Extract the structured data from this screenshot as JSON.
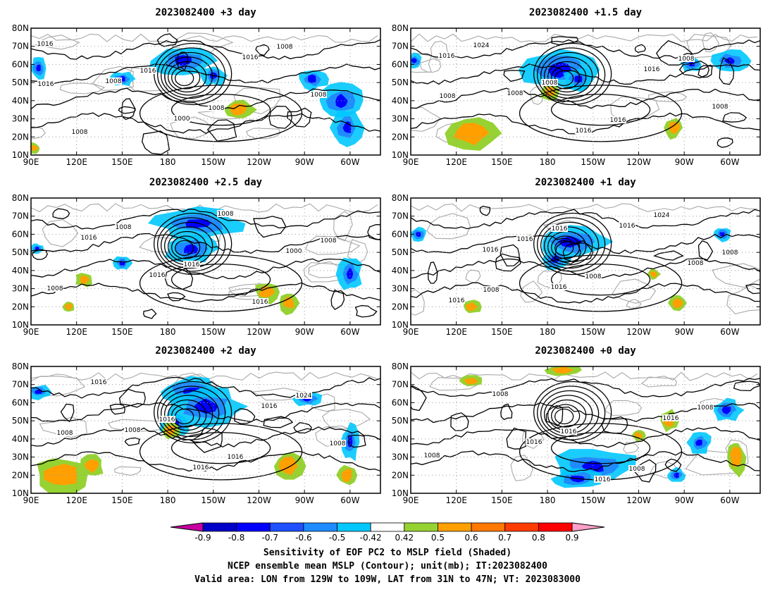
{
  "panels": [
    {
      "title": "2023082400  +3 day",
      "isobar_labels": [
        "1016",
        "1008",
        "1000",
        "1016",
        "1008",
        "1008",
        "1016",
        "1008",
        "1008",
        "1016"
      ],
      "blue_regions": [
        [
          -170,
          62,
          22,
          8
        ],
        [
          -150,
          54,
          8,
          6
        ],
        [
          -85,
          52,
          10,
          6
        ],
        [
          -66,
          40,
          14,
          10
        ],
        [
          -62,
          25,
          10,
          10
        ],
        [
          95,
          58,
          6,
          6
        ],
        [
          150,
          52,
          8,
          4
        ]
      ],
      "warm_regions": [
        [
          -133,
          35,
          10,
          6
        ],
        [
          92,
          14,
          4,
          3
        ]
      ]
    },
    {
      "title": "2023082400  +1.5 day",
      "isobar_labels": [
        "1016",
        "1008",
        "1016",
        "1016",
        "1008",
        "1024",
        "1008",
        "1016",
        "1008",
        "1008"
      ],
      "blue_regions": [
        [
          -172,
          57,
          24,
          12
        ],
        [
          -160,
          52,
          10,
          6
        ],
        [
          -85,
          60,
          8,
          4
        ],
        [
          -60,
          62,
          12,
          6
        ],
        [
          92,
          62,
          6,
          4
        ]
      ],
      "warm_regions": [
        [
          -178,
          45,
          6,
          5
        ],
        [
          130,
          22,
          18,
          10
        ],
        [
          -97,
          25,
          6,
          6
        ]
      ]
    },
    {
      "title": "2023082400  +2.5 day",
      "isobar_labels": [
        "1016",
        "1016",
        "1008",
        "1000",
        "1008",
        "1008",
        "1016",
        "1016",
        "1008"
      ],
      "blue_regions": [
        [
          -160,
          66,
          30,
          8
        ],
        [
          -165,
          52,
          18,
          8
        ],
        [
          -60,
          38,
          8,
          10
        ],
        [
          94,
          52,
          4,
          3
        ],
        [
          150,
          44,
          6,
          4
        ]
      ],
      "warm_regions": [
        [
          -115,
          28,
          8,
          6
        ],
        [
          125,
          35,
          6,
          4
        ],
        [
          -100,
          22,
          6,
          6
        ],
        [
          115,
          20,
          4,
          3
        ]
      ]
    },
    {
      "title": "2023082400  +1 day",
      "isobar_labels": [
        "1016",
        "1016",
        "1016",
        "1008",
        "1016",
        "1016",
        "1008",
        "1024",
        "1008",
        "1008",
        "1016"
      ],
      "blue_regions": [
        [
          -165,
          56,
          24,
          10
        ],
        [
          -175,
          46,
          10,
          6
        ],
        [
          95,
          60,
          6,
          4
        ],
        [
          -65,
          60,
          6,
          4
        ]
      ],
      "warm_regions": [
        [
          130,
          20,
          6,
          4
        ],
        [
          -95,
          22,
          6,
          4
        ],
        [
          -110,
          38,
          4,
          3
        ]
      ]
    },
    {
      "title": "2023082400  +2 day",
      "isobar_labels": [
        "1008",
        "1016",
        "1016",
        "1008",
        "1016",
        "1016",
        "1016",
        "1024",
        "1008"
      ],
      "blue_regions": [
        [
          -165,
          66,
          22,
          8
        ],
        [
          -155,
          58,
          26,
          10
        ],
        [
          -175,
          48,
          10,
          6
        ],
        [
          -88,
          62,
          10,
          4
        ],
        [
          95,
          66,
          8,
          4
        ],
        [
          -60,
          38,
          6,
          10
        ]
      ],
      "warm_regions": [
        [
          110,
          20,
          18,
          10
        ],
        [
          130,
          25,
          8,
          6
        ],
        [
          -100,
          25,
          10,
          8
        ],
        [
          -178,
          45,
          6,
          5
        ],
        [
          -62,
          20,
          6,
          6
        ]
      ]
    },
    {
      "title": "2023082400  +0 day",
      "isobar_labels": [
        "1016",
        "1016",
        "1016",
        "1008",
        "1008",
        "1016",
        "1008",
        "1008"
      ],
      "blue_regions": [
        [
          -150,
          25,
          28,
          10
        ],
        [
          -160,
          18,
          18,
          6
        ],
        [
          -80,
          38,
          8,
          6
        ],
        [
          -62,
          56,
          10,
          6
        ],
        [
          -95,
          20,
          6,
          4
        ]
      ],
      "warm_regions": [
        [
          -170,
          78,
          12,
          3
        ],
        [
          130,
          72,
          8,
          3
        ],
        [
          -56,
          30,
          6,
          10
        ],
        [
          -100,
          50,
          6,
          6
        ],
        [
          -120,
          42,
          4,
          3
        ]
      ]
    }
  ],
  "axes": {
    "lon_ticks": [
      "90E",
      "120E",
      "150E",
      "180",
      "150W",
      "120W",
      "90W",
      "60W"
    ],
    "lon_values": [
      90,
      120,
      150,
      180,
      210,
      240,
      270,
      300
    ],
    "lat_ticks": [
      "10N",
      "20N",
      "30N",
      "40N",
      "50N",
      "60N",
      "70N",
      "80N"
    ],
    "lat_values": [
      10,
      20,
      30,
      40,
      50,
      60,
      70,
      80
    ],
    "xlim": [
      90,
      320
    ],
    "ylim": [
      10,
      80
    ]
  },
  "colorbar": {
    "labels": [
      "-0.9",
      "-0.8",
      "-0.7",
      "-0.6",
      "-0.5",
      "-0.42",
      "0.42",
      "0.5",
      "0.6",
      "0.7",
      "0.8",
      "0.9"
    ],
    "colors": [
      "#0000c8",
      "#0000ff",
      "#1e50ff",
      "#1e8cff",
      "#00c8ff",
      "#ffffff",
      "#96d232",
      "#ffa000",
      "#ff7800",
      "#ff3c00",
      "#ff0000"
    ],
    "low_extend_color": "#c800a0",
    "high_extend_color": "#ffa0c8"
  },
  "caption": {
    "line1": "Sensitivity of EOF PC2 to MSLP field (Shaded)",
    "line2": "NCEP ensemble mean MSLP (Contour); unit(mb); IT:2023082400",
    "line3": "Valid area: LON from 129W to 109W, LAT from 31N to 47N; VT: 2023083000"
  }
}
